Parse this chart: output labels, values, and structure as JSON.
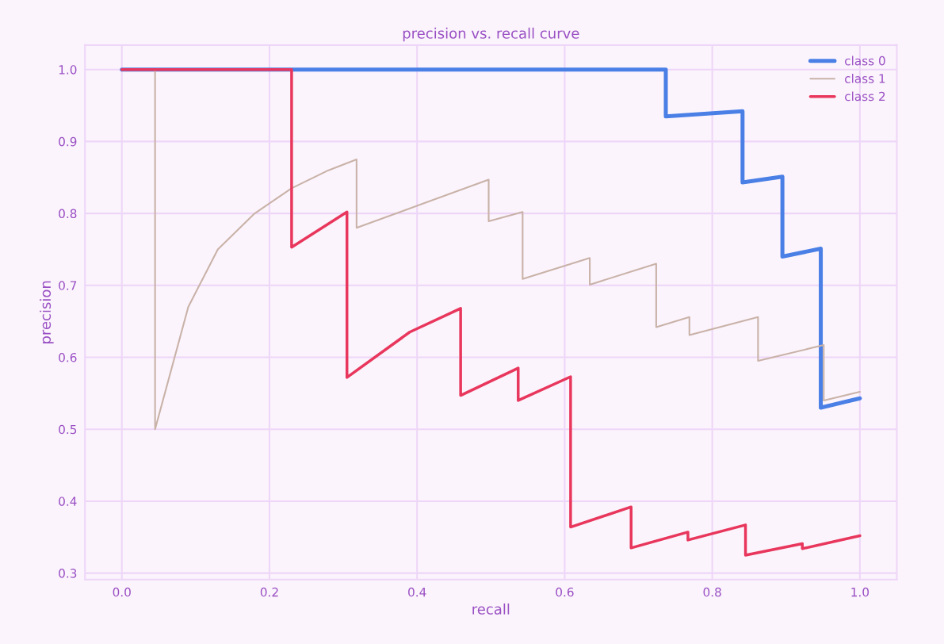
{
  "chart_data": {
    "type": "line",
    "title": "precision vs. recall curve",
    "xlabel": "recall",
    "ylabel": "precision",
    "series": [
      {
        "name": "class 0",
        "color": "#4a7fe6",
        "x": [
          0,
          0.737,
          0.737,
          0.841,
          0.841,
          0.895,
          0.895,
          0.947,
          0.947,
          1.0
        ],
        "values": [
          1.0,
          1.0,
          0.935,
          0.942,
          0.843,
          0.851,
          0.74,
          0.751,
          0.53,
          0.543
        ]
      },
      {
        "name": "class 1",
        "color": "#c9b2a8",
        "x": [
          0,
          0.045,
          0.045,
          0.09,
          0.13,
          0.18,
          0.23,
          0.28,
          0.318,
          0.318,
          0.497,
          0.497,
          0.543,
          0.543,
          0.634,
          0.634,
          0.724,
          0.724,
          0.769,
          0.769,
          0.862,
          0.862,
          0.951,
          0.951,
          1.0
        ],
        "values": [
          1.0,
          1.0,
          0.5,
          0.67,
          0.75,
          0.8,
          0.835,
          0.86,
          0.875,
          0.78,
          0.847,
          0.789,
          0.802,
          0.709,
          0.738,
          0.701,
          0.73,
          0.642,
          0.656,
          0.631,
          0.656,
          0.595,
          0.617,
          0.54,
          0.552
        ]
      },
      {
        "name": "class 2",
        "color": "#e8365c",
        "x": [
          0,
          0.23,
          0.23,
          0.305,
          0.305,
          0.39,
          0.459,
          0.459,
          0.537,
          0.537,
          0.608,
          0.608,
          0.69,
          0.69,
          0.767,
          0.767,
          0.845,
          0.845,
          0.922,
          0.922,
          1.0
        ],
        "values": [
          1.0,
          1.0,
          0.753,
          0.802,
          0.572,
          0.635,
          0.668,
          0.547,
          0.585,
          0.54,
          0.573,
          0.364,
          0.392,
          0.335,
          0.357,
          0.346,
          0.367,
          0.325,
          0.341,
          0.334,
          0.352
        ]
      }
    ],
    "xlim": [
      -0.05,
      1.05
    ],
    "ylim": [
      0.291,
      1.034
    ],
    "xticks": [
      {
        "value": 0,
        "label": "0.0"
      },
      {
        "value": 0.2,
        "label": "0.2"
      },
      {
        "value": 0.4,
        "label": "0.4"
      },
      {
        "value": 0.6,
        "label": "0.6"
      },
      {
        "value": 0.8,
        "label": "0.8"
      },
      {
        "value": 1,
        "label": "1.0"
      }
    ],
    "yticks": [
      0.3,
      0.4,
      0.5,
      0.6,
      0.7,
      0.8,
      0.9,
      {
        "value": 1,
        "label": "1.0"
      }
    ],
    "grid": true,
    "legend": "top right",
    "marker": "none",
    "line_style": "solid"
  }
}
